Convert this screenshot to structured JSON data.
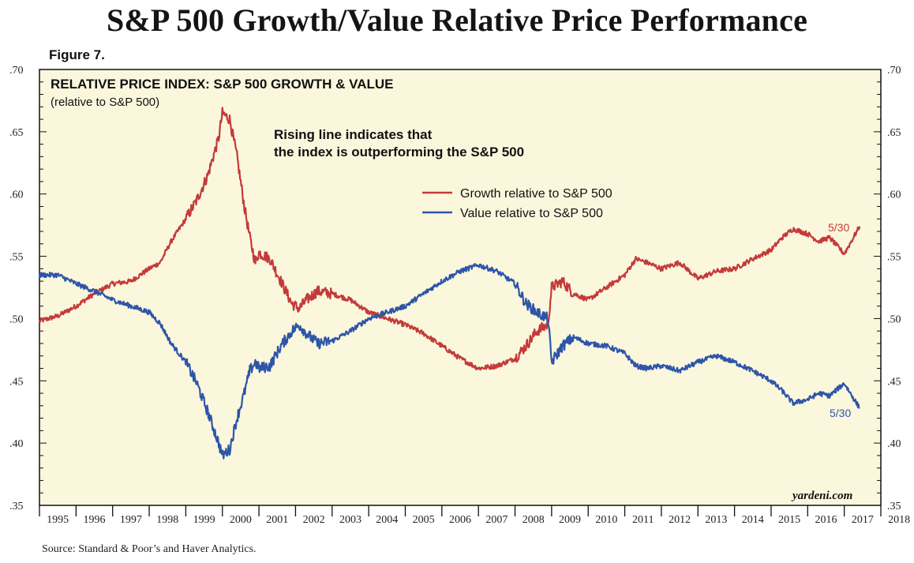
{
  "title": "S&P 500 Growth/Value Relative Price Performance",
  "figure_label": "Figure 7.",
  "source": "Source: Standard & Poor’s and Haver Analytics.",
  "watermark": "yardeni.com",
  "chart_data": {
    "type": "line",
    "panel_title": "RELATIVE PRICE INDEX: S&P 500 GROWTH & VALUE",
    "panel_subtitle": "(relative to S&P 500)",
    "annotation": [
      "Rising line indicates that",
      "the index is outperforming the S&P 500"
    ],
    "ylim": [
      0.35,
      0.7
    ],
    "xlim": [
      1995.0,
      2018.0
    ],
    "yticks": [
      ".70",
      ".65",
      ".60",
      ".55",
      ".50",
      ".45",
      ".40",
      ".35"
    ],
    "ytick_values": [
      0.7,
      0.65,
      0.6,
      0.55,
      0.5,
      0.45,
      0.4,
      0.35
    ],
    "xticks": [
      "1995",
      "1996",
      "1997",
      "1998",
      "1999",
      "2000",
      "2001",
      "2002",
      "2003",
      "2004",
      "2005",
      "2006",
      "2007",
      "2008",
      "2009",
      "2010",
      "2011",
      "2012",
      "2013",
      "2014",
      "2015",
      "2016",
      "2017",
      "2018"
    ],
    "grid": false,
    "legend_position": "upper-middle",
    "series": [
      {
        "name": "Growth relative to S&P 500",
        "color": "#c43a3a",
        "end_label": "5/30",
        "x": [
          1995.0,
          1995.5,
          1996.0,
          1996.5,
          1997.0,
          1997.5,
          1998.0,
          1998.3,
          1998.6,
          1999.0,
          1999.3,
          1999.6,
          1999.9,
          2000.0,
          2000.2,
          2000.4,
          2000.6,
          2000.75,
          2000.9,
          2001.0,
          2001.3,
          2001.6,
          2001.9,
          2002.1,
          2002.3,
          2002.6,
          2003.0,
          2003.5,
          2004.0,
          2004.5,
          2005.0,
          2005.5,
          2006.0,
          2006.5,
          2007.0,
          2007.5,
          2008.0,
          2008.3,
          2008.6,
          2008.9,
          2009.0,
          2009.3,
          2009.6,
          2010.0,
          2010.5,
          2011.0,
          2011.3,
          2011.6,
          2012.0,
          2012.5,
          2013.0,
          2013.5,
          2014.0,
          2014.5,
          2015.0,
          2015.3,
          2015.6,
          2016.0,
          2016.3,
          2016.6,
          2017.0,
          2017.42
        ],
        "y": [
          0.498,
          0.502,
          0.51,
          0.52,
          0.528,
          0.53,
          0.54,
          0.545,
          0.562,
          0.58,
          0.595,
          0.615,
          0.645,
          0.665,
          0.66,
          0.63,
          0.59,
          0.565,
          0.545,
          0.553,
          0.548,
          0.53,
          0.512,
          0.508,
          0.515,
          0.522,
          0.52,
          0.515,
          0.505,
          0.5,
          0.495,
          0.488,
          0.478,
          0.468,
          0.46,
          0.462,
          0.468,
          0.478,
          0.49,
          0.495,
          0.525,
          0.53,
          0.52,
          0.515,
          0.525,
          0.535,
          0.548,
          0.545,
          0.54,
          0.545,
          0.532,
          0.538,
          0.54,
          0.548,
          0.555,
          0.565,
          0.572,
          0.568,
          0.562,
          0.565,
          0.552,
          0.574
        ]
      },
      {
        "name": "Value relative to S&P 500",
        "color": "#2d55a8",
        "end_label": "5/30",
        "x": [
          1995.0,
          1995.5,
          1996.0,
          1996.5,
          1997.0,
          1997.5,
          1998.0,
          1998.3,
          1998.6,
          1999.0,
          1999.3,
          1999.6,
          1999.9,
          2000.0,
          2000.2,
          2000.4,
          2000.6,
          2000.75,
          2000.9,
          2001.0,
          2001.3,
          2001.6,
          2001.9,
          2002.1,
          2002.3,
          2002.6,
          2003.0,
          2003.5,
          2004.0,
          2004.5,
          2005.0,
          2005.5,
          2006.0,
          2006.5,
          2007.0,
          2007.5,
          2008.0,
          2008.3,
          2008.6,
          2008.9,
          2009.0,
          2009.3,
          2009.6,
          2010.0,
          2010.5,
          2011.0,
          2011.3,
          2011.6,
          2012.0,
          2012.5,
          2013.0,
          2013.5,
          2014.0,
          2014.5,
          2015.0,
          2015.3,
          2015.6,
          2016.0,
          2016.3,
          2016.6,
          2017.0,
          2017.42
        ],
        "y": [
          0.535,
          0.535,
          0.528,
          0.522,
          0.515,
          0.51,
          0.505,
          0.496,
          0.48,
          0.465,
          0.448,
          0.425,
          0.4,
          0.39,
          0.395,
          0.42,
          0.44,
          0.458,
          0.465,
          0.46,
          0.462,
          0.478,
          0.49,
          0.495,
          0.488,
          0.48,
          0.482,
          0.49,
          0.5,
          0.505,
          0.51,
          0.52,
          0.53,
          0.538,
          0.543,
          0.538,
          0.528,
          0.512,
          0.505,
          0.5,
          0.465,
          0.478,
          0.485,
          0.48,
          0.478,
          0.472,
          0.462,
          0.46,
          0.462,
          0.458,
          0.465,
          0.47,
          0.465,
          0.458,
          0.45,
          0.442,
          0.432,
          0.435,
          0.44,
          0.438,
          0.448,
          0.428
        ]
      }
    ]
  }
}
